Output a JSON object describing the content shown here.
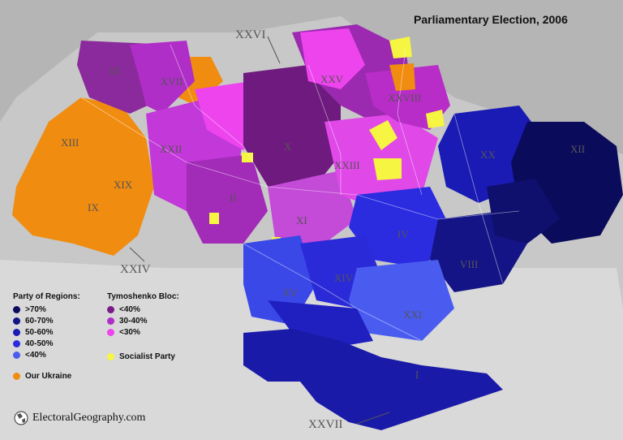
{
  "title": "Parliamentary Election, 2006",
  "legend": {
    "groups": [
      {
        "name": "Party of Regions:",
        "items": [
          {
            "label": ">70%",
            "color": "#0b0b5c"
          },
          {
            "label": "60-70%",
            "color": "#141486"
          },
          {
            "label": "50-60%",
            "color": "#1a1ab4"
          },
          {
            "label": "40-50%",
            "color": "#2b2be0"
          },
          {
            "label": "<40%",
            "color": "#4a5cf0"
          }
        ]
      },
      {
        "name": "Tymoshenko Bloc:",
        "items": [
          {
            "label": "<40%",
            "color": "#7a1c88"
          },
          {
            "label": "30-40%",
            "color": "#b02ec8"
          },
          {
            "label": "<30%",
            "color": "#ee44ee"
          }
        ]
      }
    ],
    "extra": [
      {
        "label": "Our Ukraine",
        "color": "#f08c10"
      },
      {
        "label": "Socialist Party",
        "color": "#f5f542"
      }
    ]
  },
  "region_labels": [
    "III",
    "XVII",
    "XXV",
    "XXVIII",
    "XIII",
    "XXII",
    "X",
    "XXIII",
    "XX",
    "XII",
    "XIX",
    "IX",
    "II",
    "XI",
    "IV",
    "VIII",
    "XV",
    "XIV",
    "XXI",
    "I"
  ],
  "outer_labels": [
    "XXVI",
    "XXIV",
    "XXVII"
  ],
  "footer": {
    "source": "ElectoralGeography.com"
  },
  "colors": {
    "sea": "#d6d6d6",
    "land_neighbors": "#b4b4b4",
    "border": "#ffffff"
  }
}
